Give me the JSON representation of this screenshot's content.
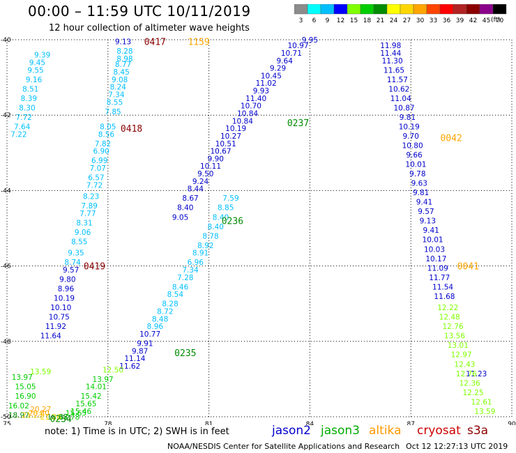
{
  "header": {
    "title": "00:00 – 11:59 UTC 10/11/2019",
    "subtitle": "12 hour collection of altimeter wave heights"
  },
  "colorbar": {
    "ticks": [
      "3",
      "6",
      "9",
      "12",
      "15",
      "18",
      "21",
      "24",
      "27",
      "30",
      "33",
      "36",
      "39",
      "42",
      "45",
      "70"
    ],
    "colors": [
      "#8c8c8c",
      "#00ffff",
      "#00bfff",
      "#0000ff",
      "#7fff00",
      "#00cd00",
      "#008b00",
      "#ffff00",
      "#ffd700",
      "#ffa500",
      "#ff4500",
      "#ff0000",
      "#b22222",
      "#8b0000",
      "#8b008b",
      "#000000"
    ],
    "unit": "(ft)"
  },
  "footer": {
    "note": "note: 1) Time is in UTC; 2) SWH is in feet",
    "legend": [
      {
        "label": "jason2",
        "color": "#0000cc"
      },
      {
        "label": "jason3",
        "color": "#00aa00"
      },
      {
        "label": "altika",
        "color": "#ff9900"
      },
      {
        "label": "cryosat",
        "color": "#cc0000"
      },
      {
        "label": "s3a",
        "color": "#8b0000"
      }
    ],
    "credit": "NOAA/NESDIS Center for Satellite Applications and Research",
    "stamp": "Oct 12 12:27:13 UTC 2019"
  },
  "chart_data": {
    "type": "scatter",
    "xlim": [
      75,
      90
    ],
    "ylim": [
      -50,
      -40
    ],
    "xticks": [
      "75",
      "78",
      "81",
      "84",
      "87",
      "90"
    ],
    "yticks": [
      "-40",
      "-42",
      "-44",
      "-46",
      "-48",
      "-50"
    ],
    "grid": true,
    "series": [
      {
        "color": "#00bfff",
        "points": [
          [
            78.5,
            -40.3,
            "8.28"
          ],
          [
            78.5,
            -40.5,
            "8.98"
          ],
          [
            78.45,
            -40.65,
            "8.77"
          ],
          [
            78.4,
            -40.85,
            "8.45"
          ],
          [
            78.35,
            -41.05,
            "9.08"
          ],
          [
            78.3,
            -41.25,
            "8.24"
          ],
          [
            78.25,
            -41.45,
            "7.34"
          ],
          [
            78.2,
            -41.65,
            "8.55"
          ],
          [
            78.15,
            -41.9,
            "7.85"
          ],
          [
            78.0,
            -42.3,
            "8.05"
          ],
          [
            77.95,
            -42.5,
            "8.56"
          ],
          [
            77.85,
            -42.75,
            "7.82"
          ],
          [
            77.8,
            -42.95,
            "6.90"
          ],
          [
            77.75,
            -43.2,
            "6.99"
          ],
          [
            77.7,
            -43.4,
            "7.07"
          ],
          [
            77.65,
            -43.65,
            "6.57"
          ],
          [
            77.6,
            -43.85,
            "7.72"
          ],
          [
            77.5,
            -44.15,
            "8.23"
          ],
          [
            77.45,
            -44.4,
            "7.89"
          ],
          [
            77.4,
            -44.6,
            "7.77"
          ],
          [
            77.3,
            -44.85,
            "8.31"
          ],
          [
            77.25,
            -45.1,
            "9.06"
          ],
          [
            77.15,
            -45.35,
            "8.55"
          ],
          [
            77.05,
            -45.65,
            "9.35"
          ],
          [
            76.95,
            -45.9,
            "8.74"
          ],
          [
            76.05,
            -40.4,
            "9.39"
          ],
          [
            75.9,
            -40.6,
            "9.45"
          ],
          [
            75.85,
            -40.8,
            "9.55"
          ],
          [
            75.8,
            -41.05,
            "9.16"
          ],
          [
            75.7,
            -41.3,
            "8.51"
          ],
          [
            75.65,
            -41.55,
            "8.39"
          ],
          [
            75.6,
            -41.8,
            "8.30"
          ],
          [
            75.5,
            -42.05,
            "7.72"
          ],
          [
            75.45,
            -42.3,
            "7.64"
          ],
          [
            75.35,
            -42.5,
            "7.22"
          ],
          [
            81.65,
            -44.2,
            "7.59"
          ],
          [
            81.5,
            -44.45,
            "8.85"
          ],
          [
            81.35,
            -44.7,
            "8.40"
          ],
          [
            81.2,
            -44.95,
            "8.40"
          ],
          [
            81.05,
            -45.2,
            "8.78"
          ],
          [
            80.9,
            -45.45,
            "8.92"
          ],
          [
            80.75,
            -45.65,
            "8.91"
          ],
          [
            80.6,
            -45.9,
            "6.96"
          ],
          [
            80.45,
            -46.1,
            "7.34"
          ],
          [
            80.3,
            -46.3,
            "7.28"
          ],
          [
            80.15,
            -46.55,
            "8.46"
          ],
          [
            80.0,
            -46.75,
            "8.54"
          ],
          [
            79.85,
            -47.0,
            "8.28"
          ],
          [
            79.7,
            -47.2,
            "8.72"
          ],
          [
            79.55,
            -47.4,
            "8.48"
          ],
          [
            79.4,
            -47.6,
            "8.96"
          ]
        ]
      },
      {
        "color": "#0000cc",
        "points": [
          [
            78.45,
            -40.05,
            "9.13"
          ],
          [
            76.9,
            -46.1,
            "9.57"
          ],
          [
            76.8,
            -46.35,
            "9.80"
          ],
          [
            76.75,
            -46.6,
            "8.96"
          ],
          [
            76.7,
            -46.85,
            "10.19"
          ],
          [
            76.6,
            -47.1,
            "10.10"
          ],
          [
            76.55,
            -47.35,
            "10.75"
          ],
          [
            76.45,
            -47.6,
            "11.92"
          ],
          [
            76.3,
            -47.85,
            "11.64"
          ],
          [
            83.65,
            -40.15,
            "10.97"
          ],
          [
            83.45,
            -40.35,
            "10.71"
          ],
          [
            83.25,
            -40.55,
            "9.64"
          ],
          [
            83.05,
            -40.75,
            "9.29"
          ],
          [
            82.85,
            -40.95,
            "10.45"
          ],
          [
            82.7,
            -41.15,
            "11.02"
          ],
          [
            82.55,
            -41.35,
            "9.93"
          ],
          [
            82.4,
            -41.55,
            "11.40"
          ],
          [
            82.25,
            -41.75,
            "10.70"
          ],
          [
            82.15,
            -41.95,
            "10.84"
          ],
          [
            82.0,
            -42.15,
            "10.84"
          ],
          [
            81.8,
            -42.35,
            "10.19"
          ],
          [
            81.65,
            -42.55,
            "10.27"
          ],
          [
            81.5,
            -42.75,
            "10.51"
          ],
          [
            81.35,
            -42.95,
            "10.67"
          ],
          [
            81.2,
            -43.15,
            "9.90"
          ],
          [
            81.05,
            -43.35,
            "10.11"
          ],
          [
            80.9,
            -43.55,
            "9.50"
          ],
          [
            80.75,
            -43.75,
            "9.24"
          ],
          [
            80.6,
            -43.95,
            "8.44"
          ],
          [
            80.45,
            -44.2,
            "8.67"
          ],
          [
            80.3,
            -44.45,
            "8.40"
          ],
          [
            80.15,
            -44.7,
            "9.05"
          ],
          [
            79.25,
            -47.8,
            "10.77"
          ],
          [
            79.1,
            -48.05,
            "9.91"
          ],
          [
            78.95,
            -48.25,
            "9.87"
          ],
          [
            78.8,
            -48.45,
            "11.14"
          ],
          [
            78.65,
            -48.65,
            "11.62"
          ],
          [
            84.0,
            -40.0,
            "9.95"
          ],
          [
            86.4,
            -40.15,
            "11.98"
          ],
          [
            86.4,
            -40.35,
            "11.44"
          ],
          [
            86.45,
            -40.55,
            "11.30"
          ],
          [
            86.5,
            -40.8,
            "11.65"
          ],
          [
            86.6,
            -41.05,
            "11.57"
          ],
          [
            86.65,
            -41.3,
            "10.62"
          ],
          [
            86.7,
            -41.55,
            "11.04"
          ],
          [
            86.8,
            -41.8,
            "10.87"
          ],
          [
            86.9,
            -42.05,
            "9.81"
          ],
          [
            86.95,
            -42.3,
            "10.19"
          ],
          [
            87.0,
            -42.55,
            "9.70"
          ],
          [
            87.05,
            -42.8,
            "10.80"
          ],
          [
            87.1,
            -43.05,
            "9.66"
          ],
          [
            87.15,
            -43.3,
            "10.01"
          ],
          [
            87.2,
            -43.55,
            "9.78"
          ],
          [
            87.25,
            -43.8,
            "9.63"
          ],
          [
            87.3,
            -44.05,
            "9.81"
          ],
          [
            87.4,
            -44.3,
            "9.41"
          ],
          [
            87.45,
            -44.55,
            "9.57"
          ],
          [
            87.5,
            -44.8,
            "9.13"
          ],
          [
            87.6,
            -45.05,
            "9.41"
          ],
          [
            87.65,
            -45.3,
            "10.01"
          ],
          [
            87.7,
            -45.55,
            "10.03"
          ],
          [
            87.75,
            -45.8,
            "10.17"
          ],
          [
            87.8,
            -46.05,
            "11.09"
          ],
          [
            87.85,
            -46.3,
            "11.77"
          ],
          [
            87.95,
            -46.55,
            "11.54"
          ],
          [
            88.0,
            -46.8,
            "11.68"
          ],
          [
            88.95,
            -48.85,
            "11.23"
          ]
        ]
      },
      {
        "color": "#7fff00",
        "points": [
          [
            78.15,
            -48.75,
            "12.50"
          ],
          [
            76.0,
            -48.8,
            "13.59"
          ],
          [
            88.1,
            -47.1,
            "12.22"
          ],
          [
            88.15,
            -47.35,
            "12.48"
          ],
          [
            88.25,
            -47.6,
            "12.76"
          ],
          [
            88.3,
            -47.85,
            "13.56"
          ],
          [
            88.4,
            -48.1,
            "13.01"
          ],
          [
            88.5,
            -48.35,
            "12.97"
          ],
          [
            88.6,
            -48.6,
            "12.43"
          ],
          [
            88.65,
            -48.85,
            "12.76"
          ],
          [
            88.75,
            -49.1,
            "12.36"
          ],
          [
            88.85,
            -49.35,
            "12.25"
          ],
          [
            89.1,
            -49.6,
            "12.61"
          ],
          [
            89.2,
            -49.85,
            "13.59"
          ]
        ]
      },
      {
        "color": "#00cd00",
        "points": [
          [
            75.45,
            -48.95,
            "13.97"
          ],
          [
            75.55,
            -49.2,
            "15.05"
          ],
          [
            75.55,
            -49.45,
            "16.90"
          ],
          [
            75.35,
            -49.7,
            "16.02"
          ],
          [
            77.85,
            -49.0,
            "13.97"
          ],
          [
            77.65,
            -49.2,
            "14.01"
          ],
          [
            77.5,
            -49.45,
            "15.42"
          ],
          [
            77.35,
            -49.65,
            "15.65"
          ],
          [
            77.2,
            -49.85,
            "15.46"
          ],
          [
            77.05,
            -49.9,
            "15.65"
          ],
          [
            76.85,
            -50.0,
            "17.78"
          ]
        ]
      },
      {
        "color": "#008b00",
        "points": [
          [
            75.35,
            -49.95,
            "18.97"
          ],
          [
            76.5,
            -50.0,
            "18.63"
          ]
        ]
      },
      {
        "color": "#ffd700",
        "points": [
          [
            76.3,
            -50.0,
            "21.26"
          ],
          [
            75.75,
            -49.95,
            "21.23"
          ]
        ]
      },
      {
        "color": "#ffa500",
        "points": [
          [
            76.0,
            -49.8,
            "20.27"
          ],
          [
            75.95,
            -49.9,
            "20.80"
          ]
        ]
      }
    ],
    "annotations": [
      {
        "x": 79.4,
        "y": -40.05,
        "text": "0417",
        "color": "#8b0000"
      },
      {
        "x": 78.7,
        "y": -42.35,
        "text": "0418",
        "color": "#8b0000"
      },
      {
        "x": 77.6,
        "y": -46.0,
        "text": "0419",
        "color": "#8b0000"
      },
      {
        "x": 83.65,
        "y": -42.2,
        "text": "0237",
        "color": "#008b00"
      },
      {
        "x": 81.7,
        "y": -44.8,
        "text": "0236",
        "color": "#008b00"
      },
      {
        "x": 80.3,
        "y": -48.3,
        "text": "0235",
        "color": "#008b00"
      },
      {
        "x": 76.6,
        "y": -50.05,
        "text": "0234",
        "color": "#008b00"
      },
      {
        "x": 80.7,
        "y": -40.05,
        "text": "1159",
        "color": "#ffa500"
      },
      {
        "x": 88.2,
        "y": -42.6,
        "text": "0042",
        "color": "#ffa500"
      },
      {
        "x": 88.7,
        "y": -46.0,
        "text": "0041",
        "color": "#ffa500"
      }
    ]
  }
}
